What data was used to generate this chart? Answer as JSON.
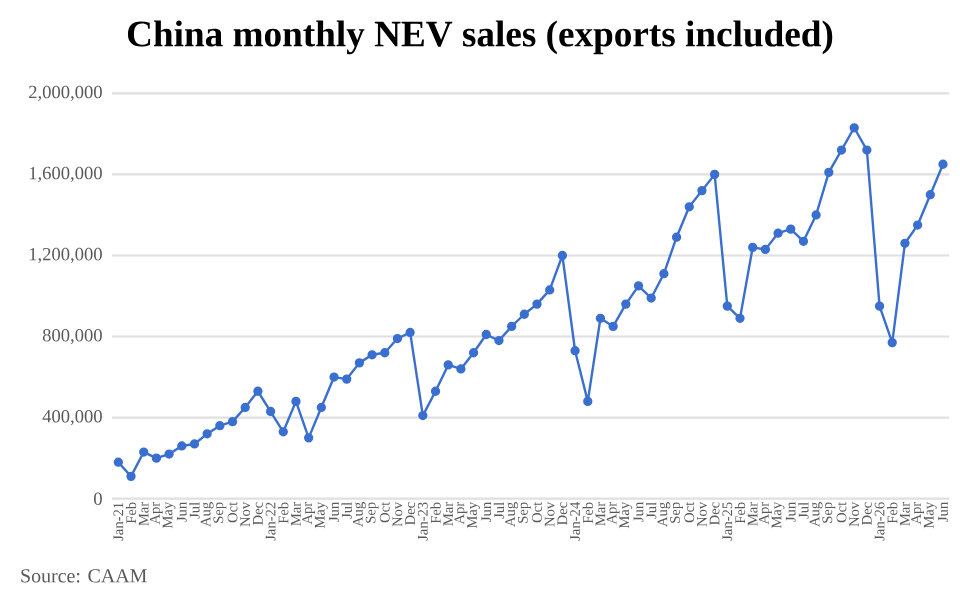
{
  "chart_data": {
    "type": "line",
    "title": "China monthly NEV sales (exports included)",
    "categories": [
      "Jan-21",
      "Feb",
      "Mar",
      "Apr",
      "May",
      "Jun",
      "Jul",
      "Aug",
      "Sep",
      "Oct",
      "Nov",
      "Dec",
      "Jan-22",
      "Feb",
      "Mar",
      "Apr",
      "May",
      "Jun",
      "Jul",
      "Aug",
      "Sep",
      "Oct",
      "Nov",
      "Dec",
      "Jan-23",
      "Feb",
      "Mar",
      "Apr",
      "May",
      "Jun",
      "Jul",
      "Aug",
      "Sep",
      "Oct",
      "Nov",
      "Dec",
      "Jan-24",
      "Feb",
      "Mar",
      "Apr",
      "May",
      "Jun",
      "Jul",
      "Aug",
      "Sep",
      "Oct",
      "Nov",
      "Dec",
      "Jan-25",
      "Feb",
      "Mar",
      "Apr",
      "May",
      "Jun",
      "Jul",
      "Aug",
      "Sep",
      "Oct",
      "Nov",
      "Dec",
      "Jan-26",
      "Feb",
      "Mar",
      "Apr",
      "May",
      "Jun"
    ],
    "series": [
      {
        "color": "#3a6fd0",
        "values": [
          180000,
          110000,
          230000,
          200000,
          220000,
          260000,
          270000,
          320000,
          360000,
          380000,
          450000,
          530000,
          430000,
          330000,
          480000,
          300000,
          450000,
          600000,
          590000,
          670000,
          710000,
          720000,
          790000,
          820000,
          410000,
          530000,
          660000,
          640000,
          720000,
          810000,
          780000,
          850000,
          910000,
          960000,
          1030000,
          1200000,
          730000,
          480000,
          890000,
          850000,
          960000,
          1050000,
          990000,
          1110000,
          1290000,
          1440000,
          1520000,
          1600000,
          950000,
          890000,
          1240000,
          1230000,
          1310000,
          1330000,
          1270000,
          1400000,
          1610000,
          1720000,
          1830000,
          1720000,
          950000,
          770000,
          1260000,
          1350000,
          1500000,
          1650000
        ]
      }
    ],
    "ylim": [
      0,
      2000000
    ],
    "yticks": [
      0,
      {
        "value": 400000,
        "label": "400,000"
      },
      {
        "value": 800000,
        "label": "800,000"
      },
      {
        "value": 1200000,
        "label": "1,200,000"
      },
      {
        "value": 1600000,
        "label": "1,600,000"
      },
      {
        "value": 2000000,
        "label": "2,000,000"
      }
    ],
    "grid": "y",
    "marker": "circle",
    "line_style": "solid",
    "annotations": [
      "Source: CAAM"
    ]
  }
}
